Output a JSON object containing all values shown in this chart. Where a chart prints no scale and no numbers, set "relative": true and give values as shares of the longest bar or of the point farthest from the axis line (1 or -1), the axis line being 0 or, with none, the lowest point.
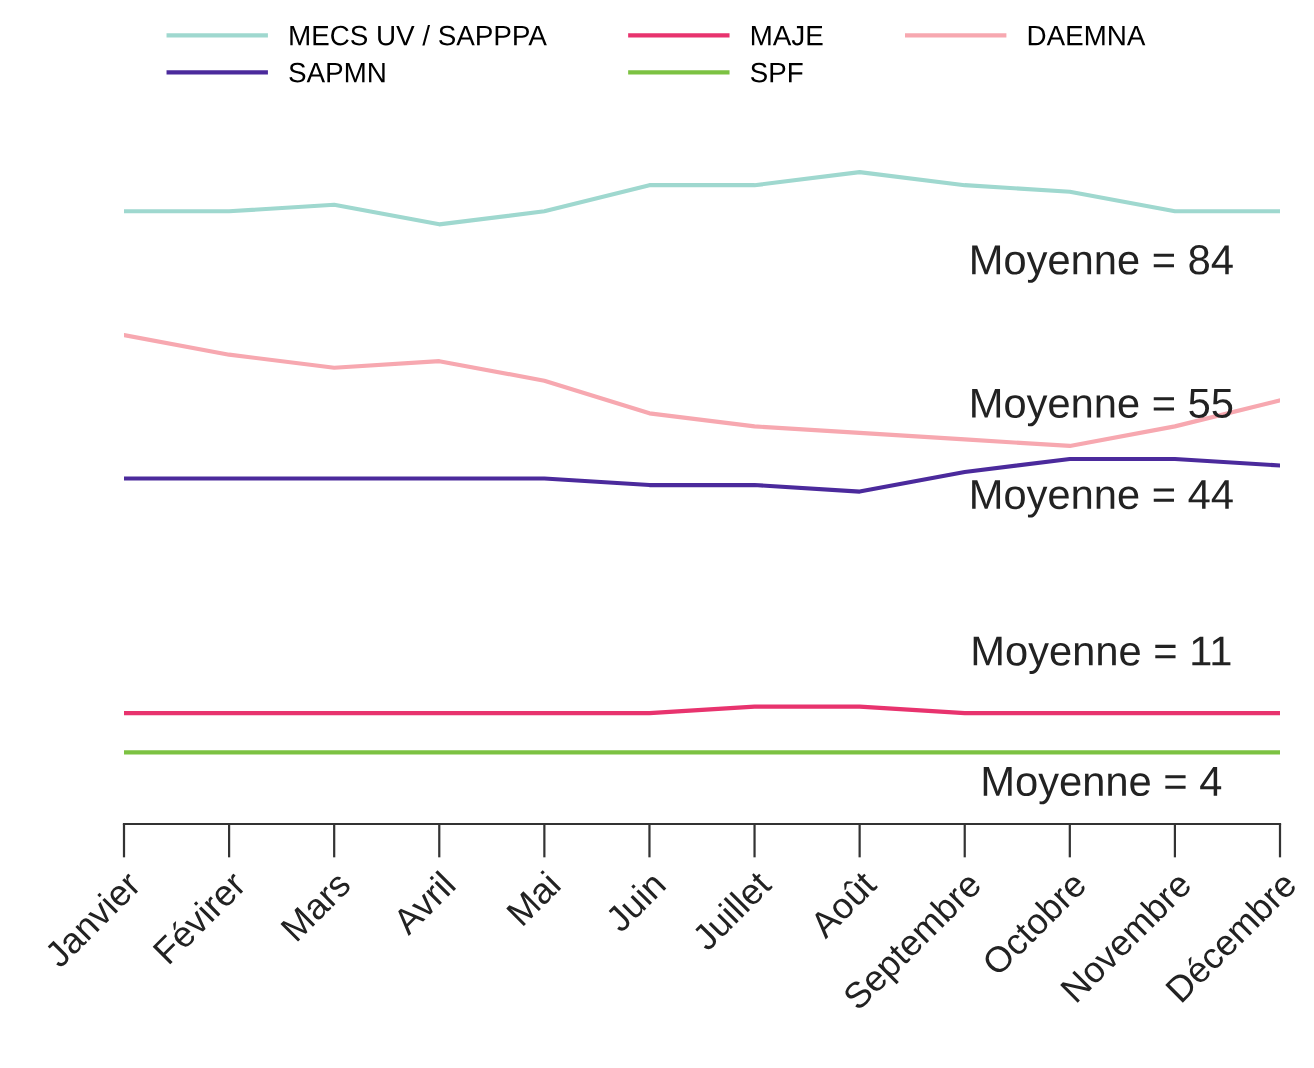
{
  "chart_data": {
    "type": "line",
    "relative": true,
    "categories": [
      "Janvier",
      "Févirer",
      "Mars",
      "Avril",
      "Mai",
      "Juin",
      "Juillet",
      "Août",
      "Septembre",
      "Octobre",
      "Novembre",
      "Décembre"
    ],
    "series": [
      {
        "name": "MECS UV / SAPPPA",
        "color": "#9fd8cf",
        "values": [
          0.94,
          0.94,
          0.95,
          0.92,
          0.94,
          0.98,
          0.98,
          1,
          0.98,
          0.97,
          0.94,
          0.94
        ]
      },
      {
        "name": "SAPMN",
        "color": "#4b2a9c",
        "values": [
          0.53,
          0.53,
          0.53,
          0.53,
          0.53,
          0.52,
          0.52,
          0.51,
          0.54,
          0.56,
          0.56,
          0.55
        ]
      },
      {
        "name": "MAJE",
        "color": "#e8336e",
        "values": [
          0.17,
          0.17,
          0.17,
          0.17,
          0.17,
          0.17,
          0.18,
          0.18,
          0.17,
          0.17,
          0.17,
          0.17
        ]
      },
      {
        "name": "SPF",
        "color": "#7cc242",
        "values": [
          0.11,
          0.11,
          0.11,
          0.11,
          0.11,
          0.11,
          0.11,
          0.11,
          0.11,
          0.11,
          0.11,
          0.11
        ]
      },
      {
        "name": "DAEMNA",
        "color": "#f7a8b0",
        "values": [
          0.75,
          0.72,
          0.7,
          0.71,
          0.68,
          0.63,
          0.61,
          0.6,
          0.59,
          0.58,
          0.61,
          0.65
        ]
      }
    ],
    "annotations": [
      "Moyenne = 84",
      "Moyenne = 55",
      "Moyenne = 44",
      "Moyenne = 11",
      "Moyenne = 4"
    ],
    "legend": "top",
    "grid": false,
    "marker": "none",
    "line_style": "solid"
  }
}
